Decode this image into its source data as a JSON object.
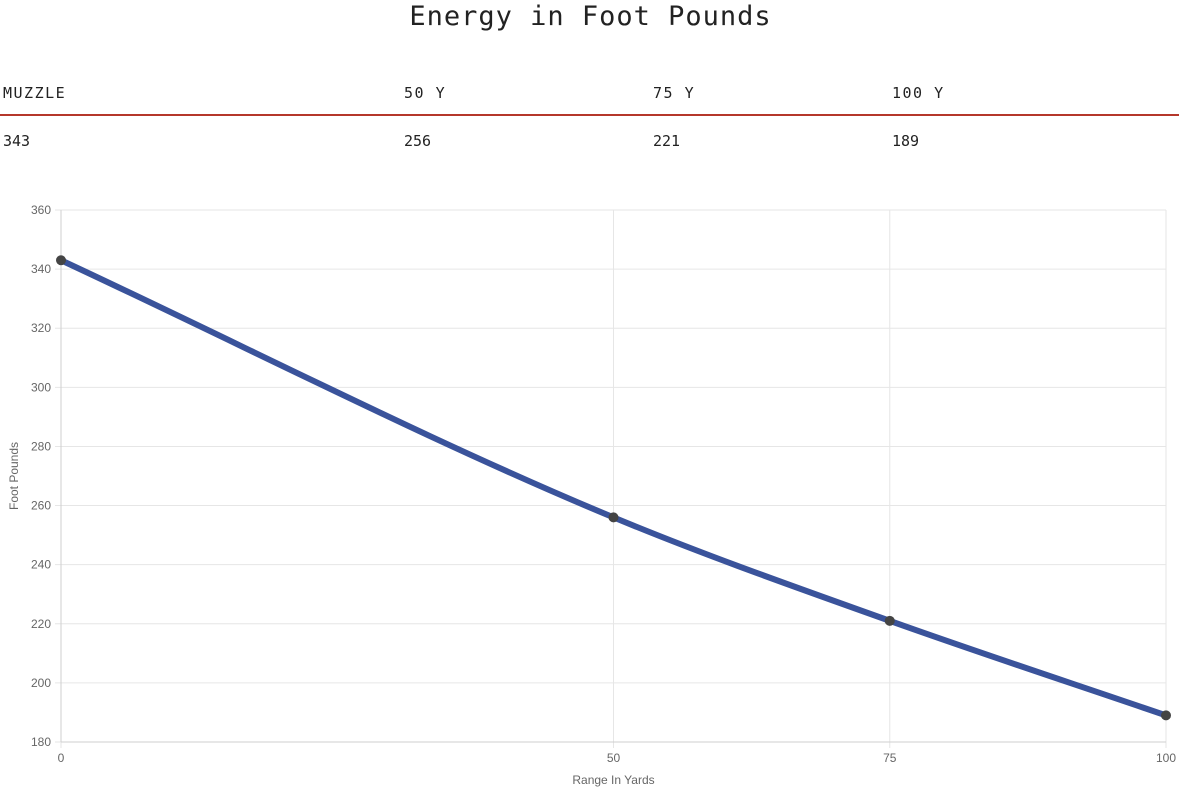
{
  "page": {
    "title": "Energy in Foot Pounds"
  },
  "table": {
    "headers": [
      "MUZZLE",
      "50 Y",
      "75 Y",
      "100 Y"
    ],
    "values": [
      "343",
      "256",
      "221",
      "189"
    ]
  },
  "colors": {
    "rule": "#b5372b",
    "line": "#3a539b",
    "point": "#444444",
    "grid": "#e6e6e6",
    "tick_text": "#666666"
  },
  "chart_data": {
    "type": "line",
    "x": [
      0,
      50,
      75,
      100
    ],
    "series": [
      {
        "values": [
          343,
          256,
          221,
          189
        ]
      }
    ],
    "xlabel": "Range In Yards",
    "ylabel": "Foot Pounds",
    "xticks": [
      "0",
      "50",
      "75",
      "100"
    ],
    "yticks": [
      360,
      340,
      320,
      300,
      280,
      260,
      240,
      220,
      200,
      180
    ],
    "xlim": [
      0,
      100
    ],
    "ylim": [
      180,
      360
    ],
    "grid": true,
    "legend": "none"
  }
}
